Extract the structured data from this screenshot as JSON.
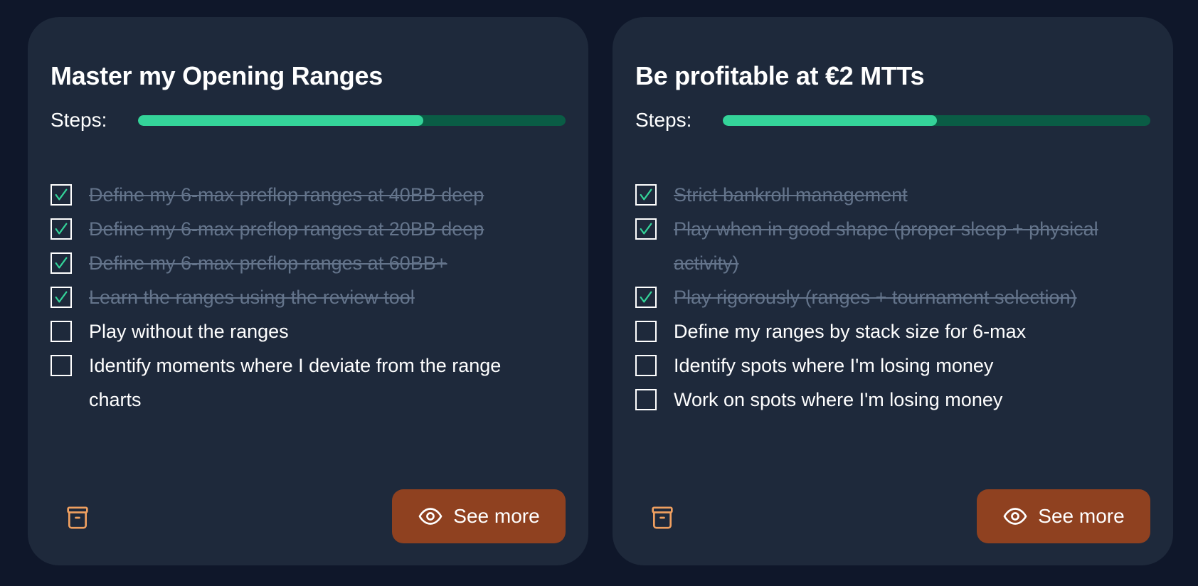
{
  "colors": {
    "background": "#0f172a",
    "card": "#1e293b",
    "progress": "#34d399",
    "progress_track": "#0a5c45",
    "done_text": "#64748b",
    "button": "#8f4120",
    "archive_icon": "#f0a060"
  },
  "cards": [
    {
      "title": "Master my Opening Ranges",
      "steps_label": "Steps:",
      "progress_fraction": 0.667,
      "items": [
        {
          "label": "Define my 6-max preflop ranges at 40BB deep",
          "done": true
        },
        {
          "label": "Define my 6-max preflop ranges at 20BB deep",
          "done": true
        },
        {
          "label": "Define my 6-max preflop ranges at 60BB+",
          "done": true
        },
        {
          "label": "Learn the ranges using the review tool",
          "done": true
        },
        {
          "label": "Play without the ranges",
          "done": false
        },
        {
          "label": "Identify moments where I deviate from the range charts",
          "done": false
        }
      ],
      "archive_icon": "archive-icon",
      "button_icon": "eye-icon",
      "button_label": "See more"
    },
    {
      "title": "Be profitable at €2 MTTs",
      "steps_label": "Steps:",
      "progress_fraction": 0.5,
      "items": [
        {
          "label": "Strict bankroll management",
          "done": true
        },
        {
          "label": "Play when in good shape (proper sleep + physical activity)",
          "done": true
        },
        {
          "label": "Play rigorously (ranges + tournament selection)",
          "done": true
        },
        {
          "label": "Define my ranges by stack size for 6-max",
          "done": false
        },
        {
          "label": "Identify spots where I'm losing money",
          "done": false
        },
        {
          "label": "Work on spots where I'm losing money",
          "done": false
        }
      ],
      "archive_icon": "archive-icon",
      "button_icon": "eye-icon",
      "button_label": "See more"
    }
  ]
}
